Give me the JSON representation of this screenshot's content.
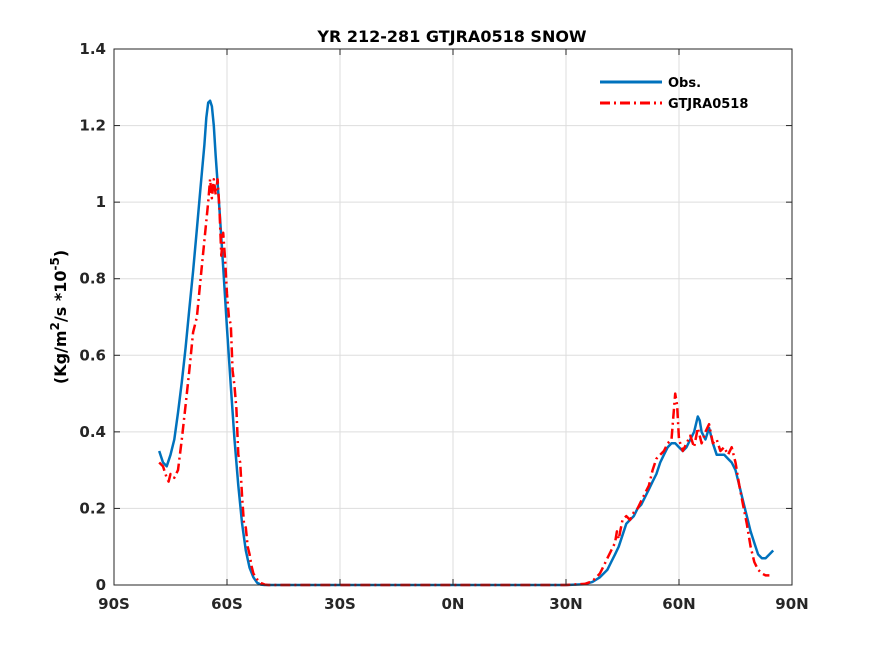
{
  "chart_data": {
    "type": "line",
    "title": "YR 212-281 GTJRA0518 SNOW",
    "xlabel": "",
    "ylabel_base": "(Kg/m",
    "ylabel_sup1": "2",
    "ylabel_mid": "/s *10",
    "ylabel_sup2": "-5",
    "ylabel_end": ")",
    "xlim": [
      -90,
      90
    ],
    "ylim": [
      0,
      1.4
    ],
    "xticks": [
      -90,
      -60,
      -30,
      0,
      30,
      60,
      90
    ],
    "xtick_labels": [
      "90S",
      "60S",
      "30S",
      "0N",
      "30N",
      "60N",
      "90N"
    ],
    "yticks": [
      0,
      0.2,
      0.4,
      0.6,
      0.8,
      1.0,
      1.2,
      1.4
    ],
    "ytick_labels": [
      "0",
      "0.2",
      "0.4",
      "0.6",
      "0.8",
      "1",
      "1.2",
      "1.4"
    ],
    "grid": true,
    "legend_position": "top-right",
    "series": [
      {
        "name": "Obs.",
        "color": "#0072BD",
        "style": "solid",
        "points": [
          [
            -78.0,
            0.35
          ],
          [
            -77,
            0.32
          ],
          [
            -76,
            0.31
          ],
          [
            -75,
            0.34
          ],
          [
            -74,
            0.38
          ],
          [
            -73,
            0.45
          ],
          [
            -72,
            0.53
          ],
          [
            -71,
            0.62
          ],
          [
            -70,
            0.72
          ],
          [
            -69,
            0.82
          ],
          [
            -68,
            0.93
          ],
          [
            -67,
            1.04
          ],
          [
            -66,
            1.15
          ],
          [
            -65.5,
            1.22
          ],
          [
            -65,
            1.26
          ],
          [
            -64.5,
            1.265
          ],
          [
            -64,
            1.25
          ],
          [
            -63.5,
            1.2
          ],
          [
            -63,
            1.12
          ],
          [
            -62,
            0.98
          ],
          [
            -61,
            0.83
          ],
          [
            -60,
            0.67
          ],
          [
            -59,
            0.52
          ],
          [
            -58,
            0.38
          ],
          [
            -57,
            0.26
          ],
          [
            -56,
            0.16
          ],
          [
            -55,
            0.09
          ],
          [
            -54,
            0.045
          ],
          [
            -53,
            0.02
          ],
          [
            -52,
            0.006
          ],
          [
            -51,
            0.001
          ],
          [
            -50,
            0.0
          ],
          [
            -40,
            0.0
          ],
          [
            -20,
            0.0
          ],
          [
            0,
            0.0
          ],
          [
            20,
            0.0
          ],
          [
            30,
            0.0
          ],
          [
            35,
            0.002
          ],
          [
            37,
            0.008
          ],
          [
            39,
            0.02
          ],
          [
            41,
            0.04
          ],
          [
            42,
            0.06
          ],
          [
            43,
            0.08
          ],
          [
            44,
            0.1
          ],
          [
            45,
            0.13
          ],
          [
            46,
            0.16
          ],
          [
            47,
            0.17
          ],
          [
            48,
            0.18
          ],
          [
            49,
            0.2
          ],
          [
            50,
            0.21
          ],
          [
            51,
            0.23
          ],
          [
            52,
            0.25
          ],
          [
            53,
            0.27
          ],
          [
            54,
            0.29
          ],
          [
            55,
            0.32
          ],
          [
            56,
            0.34
          ],
          [
            57,
            0.36
          ],
          [
            58,
            0.37
          ],
          [
            59,
            0.37
          ],
          [
            60,
            0.36
          ],
          [
            61,
            0.35
          ],
          [
            62,
            0.36
          ],
          [
            63,
            0.38
          ],
          [
            64,
            0.4
          ],
          [
            65,
            0.44
          ],
          [
            65.5,
            0.43
          ],
          [
            66,
            0.4
          ],
          [
            67,
            0.38
          ],
          [
            68,
            0.41
          ],
          [
            69,
            0.37
          ],
          [
            70,
            0.34
          ],
          [
            71,
            0.34
          ],
          [
            72,
            0.34
          ],
          [
            73,
            0.33
          ],
          [
            74,
            0.32
          ],
          [
            75,
            0.3
          ],
          [
            76,
            0.26
          ],
          [
            77,
            0.22
          ],
          [
            78,
            0.18
          ],
          [
            79,
            0.14
          ],
          [
            80,
            0.11
          ],
          [
            81,
            0.08
          ],
          [
            82,
            0.07
          ],
          [
            83,
            0.07
          ],
          [
            84,
            0.08
          ],
          [
            85,
            0.09
          ]
        ]
      },
      {
        "name": "GTJRA0518",
        "color": "#FF0000",
        "style": "dash-dot",
        "points": [
          [
            -78.0,
            0.32
          ],
          [
            -77,
            0.31
          ],
          [
            -76,
            0.28
          ],
          [
            -75.5,
            0.27
          ],
          [
            -75,
            0.29
          ],
          [
            -74,
            0.28
          ],
          [
            -73,
            0.3
          ],
          [
            -72,
            0.38
          ],
          [
            -71,
            0.47
          ],
          [
            -70,
            0.56
          ],
          [
            -69,
            0.66
          ],
          [
            -68,
            0.7
          ],
          [
            -67,
            0.8
          ],
          [
            -66,
            0.9
          ],
          [
            -65,
            1.0
          ],
          [
            -64.5,
            1.06
          ],
          [
            -64,
            1.01
          ],
          [
            -63.5,
            1.06
          ],
          [
            -63,
            1.02
          ],
          [
            -62.5,
            1.06
          ],
          [
            -62,
            0.98
          ],
          [
            -61.5,
            0.86
          ],
          [
            -61,
            0.92
          ],
          [
            -60.5,
            0.85
          ],
          [
            -60,
            0.76
          ],
          [
            -59.5,
            0.7
          ],
          [
            -59,
            0.68
          ],
          [
            -58.5,
            0.56
          ],
          [
            -58,
            0.52
          ],
          [
            -57.5,
            0.46
          ],
          [
            -57,
            0.34
          ],
          [
            -56.5,
            0.32
          ],
          [
            -56,
            0.23
          ],
          [
            -55.5,
            0.16
          ],
          [
            -55,
            0.15
          ],
          [
            -54.5,
            0.1
          ],
          [
            -54,
            0.08
          ],
          [
            -53.5,
            0.05
          ],
          [
            -53,
            0.03
          ],
          [
            -52,
            0.015
          ],
          [
            -51,
            0.005
          ],
          [
            -50,
            0.001
          ],
          [
            -49,
            0.0
          ],
          [
            -40,
            0.0
          ],
          [
            -20,
            0.0
          ],
          [
            0,
            0.0
          ],
          [
            20,
            0.0
          ],
          [
            30,
            0.0
          ],
          [
            35,
            0.003
          ],
          [
            37,
            0.01
          ],
          [
            39,
            0.03
          ],
          [
            40,
            0.05
          ],
          [
            41,
            0.07
          ],
          [
            42,
            0.09
          ],
          [
            43,
            0.11
          ],
          [
            43.5,
            0.14
          ],
          [
            44,
            0.12
          ],
          [
            45,
            0.17
          ],
          [
            46,
            0.18
          ],
          [
            47,
            0.17
          ],
          [
            48,
            0.19
          ],
          [
            49,
            0.2
          ],
          [
            50,
            0.22
          ],
          [
            51,
            0.24
          ],
          [
            52,
            0.26
          ],
          [
            53,
            0.3
          ],
          [
            54,
            0.33
          ],
          [
            55,
            0.34
          ],
          [
            56,
            0.35
          ],
          [
            57,
            0.37
          ],
          [
            58,
            0.38
          ],
          [
            59,
            0.5
          ],
          [
            59.5,
            0.47
          ],
          [
            60,
            0.38
          ],
          [
            61,
            0.35
          ],
          [
            62,
            0.37
          ],
          [
            63,
            0.39
          ],
          [
            64,
            0.36
          ],
          [
            65,
            0.41
          ],
          [
            66,
            0.37
          ],
          [
            67,
            0.4
          ],
          [
            68,
            0.42
          ],
          [
            69,
            0.37
          ],
          [
            70,
            0.38
          ],
          [
            71,
            0.35
          ],
          [
            72,
            0.36
          ],
          [
            73,
            0.34
          ],
          [
            74,
            0.36
          ],
          [
            75,
            0.32
          ],
          [
            76,
            0.26
          ],
          [
            77,
            0.21
          ],
          [
            78,
            0.16
          ],
          [
            79,
            0.1
          ],
          [
            80,
            0.06
          ],
          [
            81,
            0.04
          ],
          [
            82,
            0.03
          ],
          [
            83,
            0.025
          ],
          [
            84,
            0.025
          ]
        ]
      }
    ]
  }
}
